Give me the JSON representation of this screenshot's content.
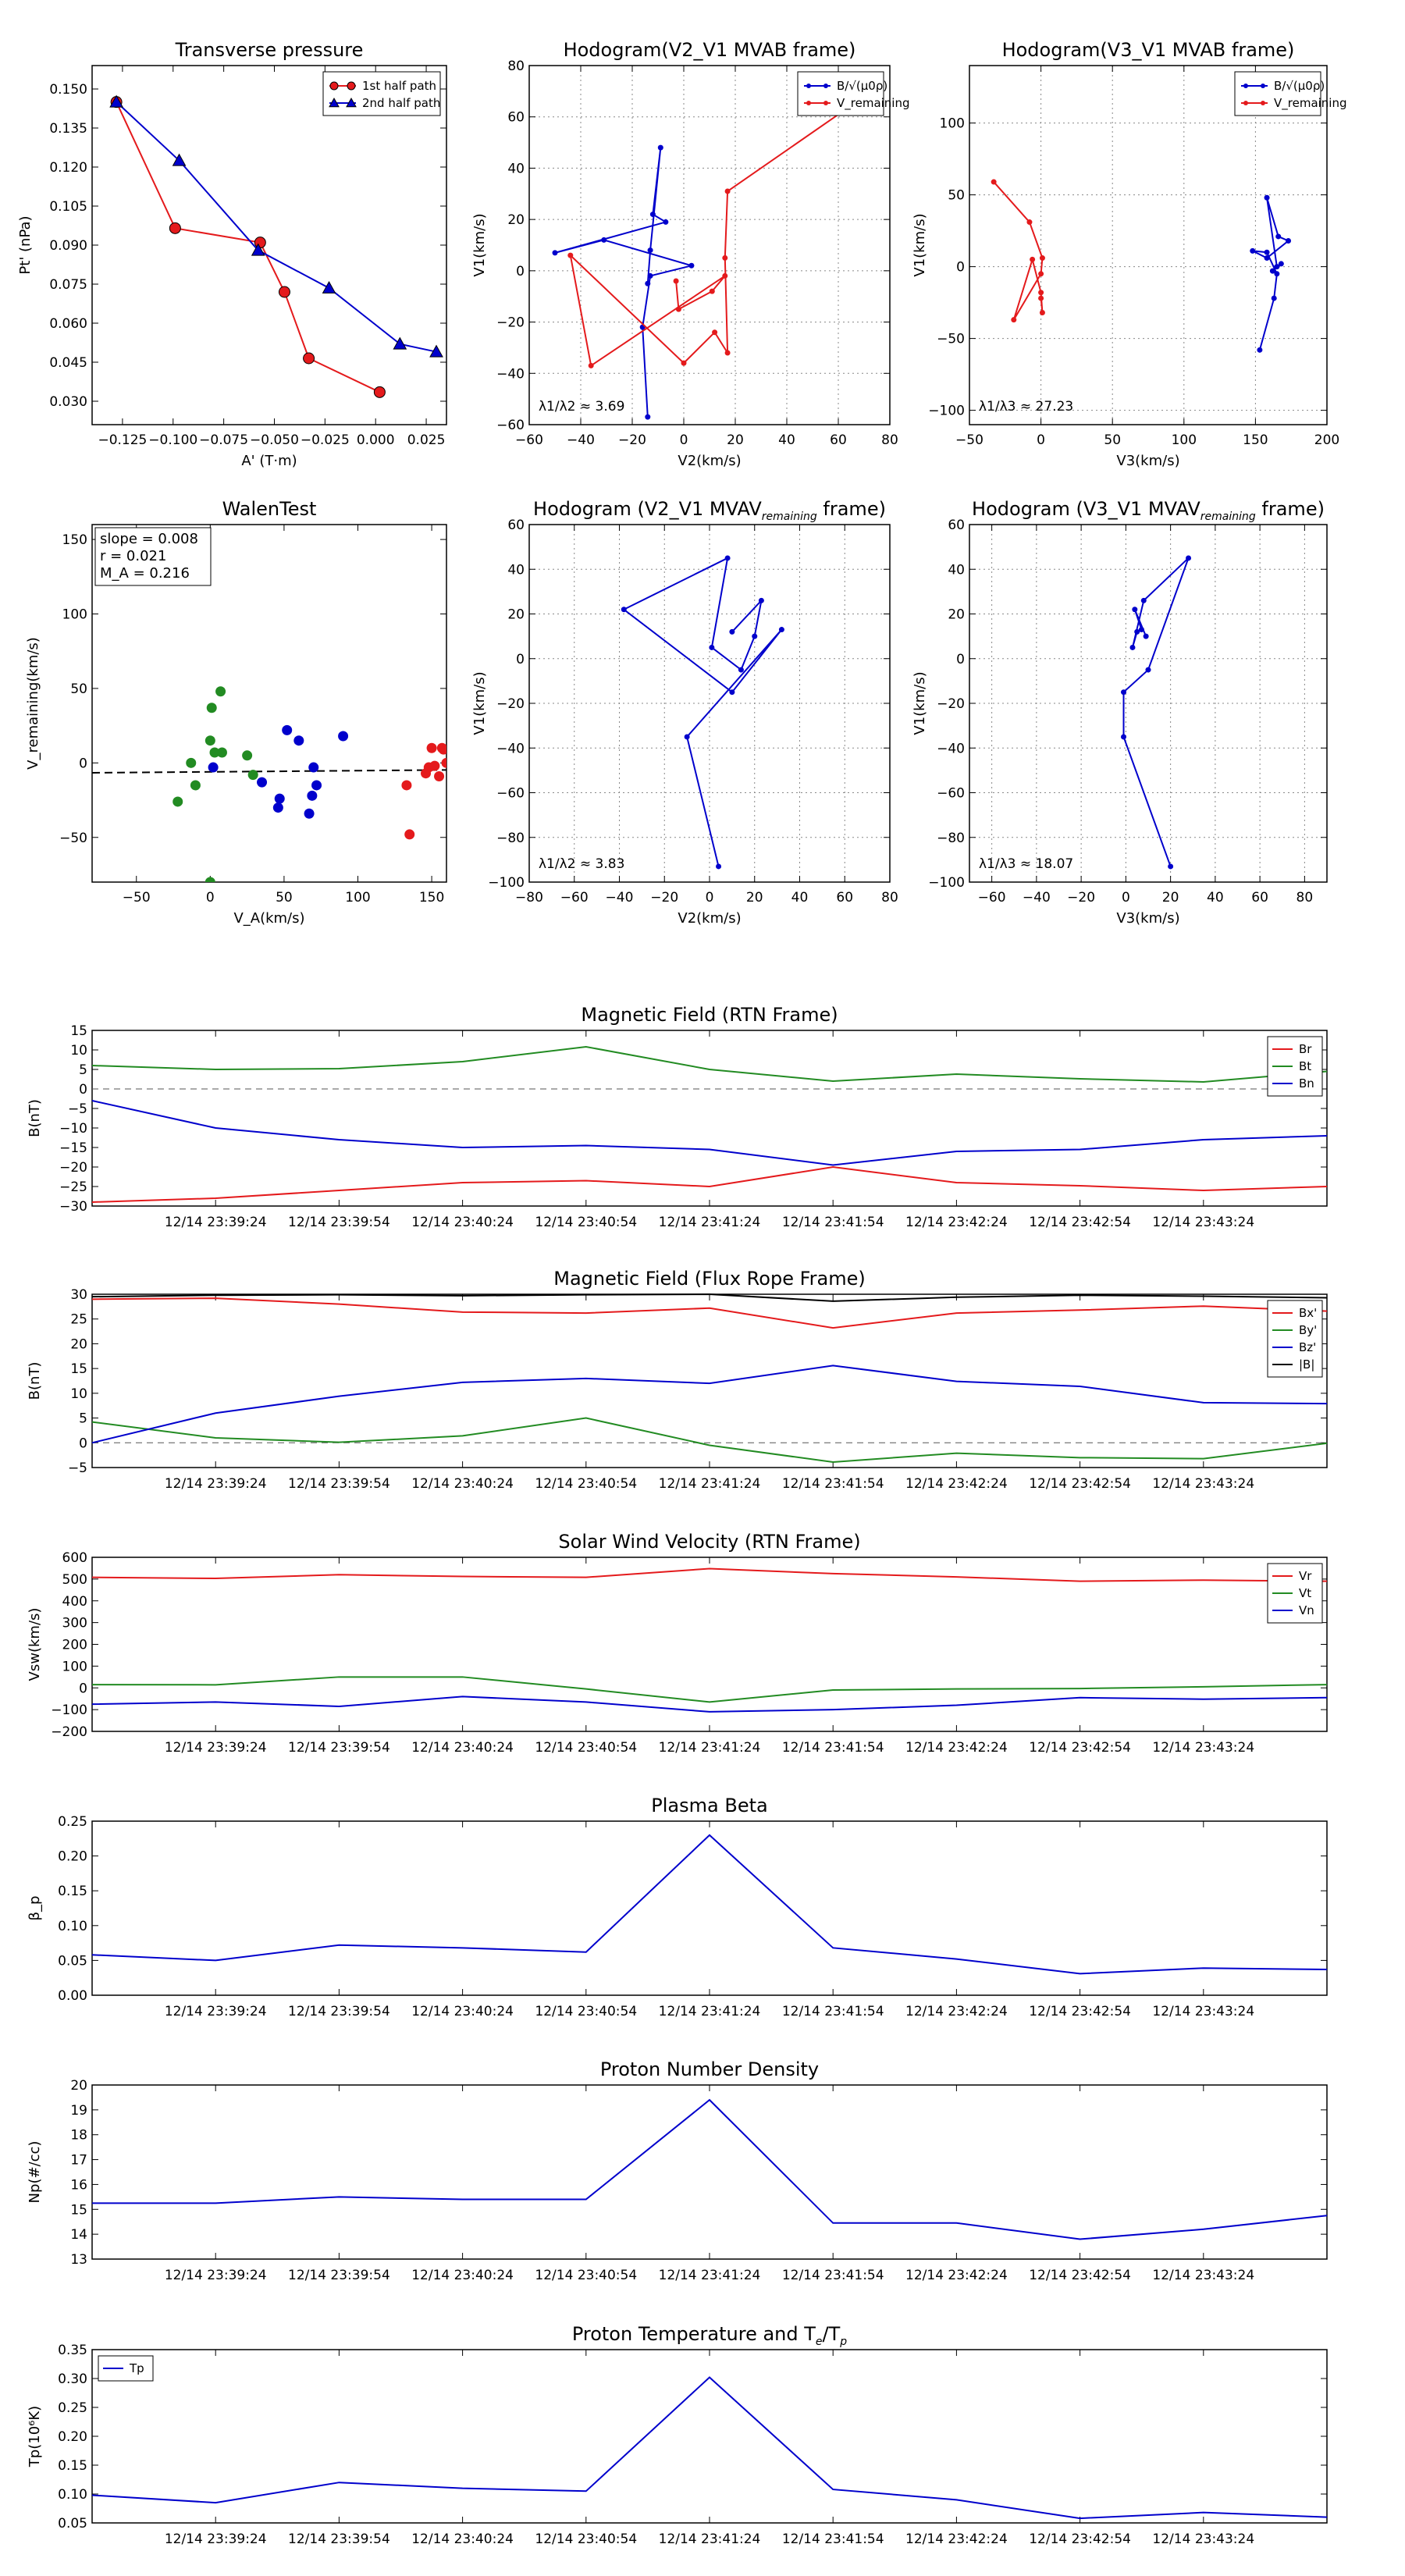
{
  "chart_data": [
    {
      "type": "line",
      "title": "Transverse pressure",
      "xlabel": "A' (T·m)",
      "ylabel": "Pt' (nPa)",
      "xlim": [
        -0.14,
        0.035
      ],
      "ylim": [
        0.021,
        0.159
      ],
      "xticks": [
        -0.125,
        -0.1,
        -0.075,
        -0.05,
        -0.025,
        0.0,
        0.025
      ],
      "xticklabels": [
        "−0.125",
        "−0.100",
        "−0.075",
        "−0.050",
        "−0.025",
        "0.000",
        "0.025"
      ],
      "yticks": [
        0.03,
        0.045,
        0.06,
        0.075,
        0.09,
        0.105,
        0.12,
        0.135,
        0.15
      ],
      "yticklabels": [
        "0.030",
        "0.045",
        "0.060",
        "0.075",
        "0.090",
        "0.105",
        "0.120",
        "0.135",
        "0.150"
      ],
      "legend": "top-right",
      "series": [
        {
          "name": "1st half path",
          "color": "#e41a1c",
          "marker": "circle",
          "x": [
            0.002,
            -0.033,
            -0.045,
            -0.057,
            -0.099,
            -0.128
          ],
          "y": [
            0.0335,
            0.0465,
            0.072,
            0.091,
            0.0965,
            0.145
          ]
        },
        {
          "name": "2nd half path",
          "color": "#0000cc",
          "marker": "triangle",
          "x": [
            -0.128,
            -0.097,
            -0.058,
            -0.023,
            0.012,
            0.03
          ],
          "y": [
            0.145,
            0.1225,
            0.088,
            0.0735,
            0.052,
            0.049
          ]
        }
      ]
    },
    {
      "type": "line",
      "title": "Hodogram(V2_V1 MVAB frame)",
      "xlabel": "V2(km/s)",
      "ylabel": "V1(km/s)",
      "xlim": [
        -60,
        80
      ],
      "ylim": [
        -60,
        80
      ],
      "xticks": [
        -60,
        -40,
        -20,
        0,
        20,
        40,
        60,
        80
      ],
      "xticklabels": [
        "−60",
        "−40",
        "−20",
        "0",
        "20",
        "40",
        "60",
        "80"
      ],
      "yticks": [
        -60,
        -40,
        -20,
        0,
        20,
        40,
        60,
        80
      ],
      "yticklabels": [
        "−60",
        "−40",
        "−20",
        "0",
        "20",
        "40",
        "60",
        "80"
      ],
      "grid": true,
      "legend": "top-right",
      "annotation": "λ1/λ2 ≈ 3.69",
      "series": [
        {
          "name": "B/√(μ0ρ)",
          "color": "#0000cc",
          "x": [
            -14,
            -16,
            -13,
            3,
            -31,
            -50,
            -7,
            -12,
            -9,
            -13,
            -14
          ],
          "y": [
            -57,
            -22,
            -2,
            2,
            12,
            7,
            19,
            22,
            48,
            8,
            -5
          ]
        },
        {
          "name": "V_remaining",
          "color": "#e41a1c",
          "x": [
            63,
            17,
            16,
            17,
            12,
            0,
            -44,
            -36,
            16,
            11,
            -2,
            -3
          ],
          "y": [
            63,
            31,
            5,
            -32,
            -24,
            -36,
            6,
            -37,
            -2,
            -8,
            -15,
            -4
          ]
        }
      ]
    },
    {
      "type": "line",
      "title": "Hodogram(V3_V1 MVAB frame)",
      "xlabel": "V3(km/s)",
      "ylabel": "V1(km/s)",
      "xlim": [
        -50,
        200
      ],
      "ylim": [
        -110,
        140
      ],
      "xticks": [
        -50,
        0,
        50,
        100,
        150,
        200
      ],
      "xticklabels": [
        "−50",
        "0",
        "50",
        "100",
        "150",
        "200"
      ],
      "yticks": [
        -100,
        -50,
        0,
        50,
        100
      ],
      "yticklabels": [
        "−100",
        "−50",
        "0",
        "50",
        "100"
      ],
      "grid": true,
      "legend": "top-right",
      "annotation": "λ1/λ3 ≈ 27.23",
      "series": [
        {
          "name": "B/√(μ0ρ)",
          "color": "#0000cc",
          "x": [
            153,
            163,
            165,
            158,
            148,
            158,
            173,
            166,
            158,
            165,
            168,
            162
          ],
          "y": [
            -58,
            -22,
            -5,
            10,
            11,
            6,
            18,
            21,
            48,
            0,
            2,
            -3
          ]
        },
        {
          "name": "V_remaining",
          "color": "#e41a1c",
          "x": [
            -33,
            -8,
            1,
            0,
            -19,
            -6,
            0,
            1,
            0
          ],
          "y": [
            59,
            31,
            6,
            -5,
            -37,
            5,
            -18,
            -32,
            -22
          ]
        }
      ]
    },
    {
      "type": "scatter",
      "title": "WalenTest",
      "xlabel": "V_A(km/s)",
      "ylabel": "V_remaining(km/s)",
      "xlim": [
        -80,
        160
      ],
      "ylim": [
        -80,
        160
      ],
      "xticks": [
        -50,
        0,
        50,
        100,
        150
      ],
      "xticklabels": [
        "−50",
        "0",
        "50",
        "100",
        "150"
      ],
      "yticks": [
        -50,
        0,
        50,
        100,
        150
      ],
      "yticklabels": [
        "−50",
        "0",
        "50",
        "100",
        "150"
      ],
      "fit_line": {
        "slope": 0.008,
        "intercept": -6,
        "style": "dashed"
      },
      "annotations": [
        "slope = 0.008",
        "r = 0.021",
        "M_A = 0.216"
      ],
      "series": [
        {
          "name": "green",
          "color": "#228b22",
          "x": [
            -22,
            -13,
            -10,
            0,
            1,
            3,
            7,
            8,
            25,
            29,
            0
          ],
          "y": [
            -26,
            0,
            -15,
            15,
            37,
            7,
            48,
            7,
            5,
            -8,
            -80
          ]
        },
        {
          "name": "blue",
          "color": "#0000cc",
          "x": [
            2,
            35,
            46,
            47,
            52,
            60,
            67,
            69,
            70,
            72,
            90
          ],
          "y": [
            -3,
            -13,
            -30,
            -24,
            22,
            15,
            -34,
            -22,
            -3,
            -15,
            18
          ]
        },
        {
          "name": "red",
          "color": "#e41a1c",
          "x": [
            133,
            135,
            146,
            148,
            150,
            152,
            155,
            157,
            158,
            160
          ],
          "y": [
            -15,
            -48,
            -7,
            -3,
            10,
            -2,
            -9,
            10,
            9,
            0
          ]
        }
      ]
    },
    {
      "type": "line",
      "title": "Hodogram (V2_V1 MVAV",
      "title_sub": "remaining",
      "title_tail": " frame)",
      "xlabel": "V2(km/s)",
      "ylabel": "V1(km/s)",
      "xlim": [
        -80,
        80
      ],
      "ylim": [
        -100,
        60
      ],
      "xticks": [
        -80,
        -60,
        -40,
        -20,
        0,
        20,
        40,
        60,
        80
      ],
      "xticklabels": [
        "−80",
        "−60",
        "−40",
        "−20",
        "0",
        "20",
        "40",
        "60",
        "80"
      ],
      "yticks": [
        -100,
        -80,
        -60,
        -40,
        -20,
        0,
        20,
        40,
        60
      ],
      "yticklabels": [
        "−100",
        "−80",
        "−60",
        "−40",
        "−20",
        "0",
        "20",
        "40",
        "60"
      ],
      "grid": true,
      "annotation": "λ1/λ2 ≈ 3.83",
      "series": [
        {
          "name": "V",
          "color": "#0000cc",
          "x": [
            4,
            -10,
            32,
            10,
            -38,
            8,
            1,
            14,
            20,
            23,
            10
          ],
          "y": [
            -93,
            -35,
            13,
            -15,
            22,
            45,
            5,
            -5,
            10,
            26,
            12
          ]
        }
      ]
    },
    {
      "type": "line",
      "title": "Hodogram (V3_V1 MVAV",
      "title_sub": "remaining",
      "title_tail": " frame)",
      "xlabel": "V3(km/s)",
      "ylabel": "V1(km/s)",
      "xlim": [
        -70,
        90
      ],
      "ylim": [
        -100,
        60
      ],
      "xticks": [
        -60,
        -40,
        -20,
        0,
        20,
        40,
        60,
        80
      ],
      "xticklabels": [
        "−60",
        "−40",
        "−20",
        "0",
        "20",
        "40",
        "60",
        "80"
      ],
      "yticks": [
        -100,
        -80,
        -60,
        -40,
        -20,
        0,
        20,
        40,
        60
      ],
      "yticklabels": [
        "−100",
        "−80",
        "−60",
        "−40",
        "−20",
        "0",
        "20",
        "40",
        "60"
      ],
      "grid": true,
      "annotation": "λ1/λ3 ≈ 18.07",
      "series": [
        {
          "name": "V",
          "color": "#0000cc",
          "x": [
            20,
            -1,
            -1,
            10,
            28,
            8,
            3,
            5,
            7,
            4,
            9
          ],
          "y": [
            -93,
            -35,
            -15,
            -5,
            45,
            26,
            5,
            12,
            13,
            22,
            10
          ]
        }
      ]
    },
    {
      "type": "line",
      "title": "Magnetic Field (RTN Frame)",
      "xlabel": "",
      "ylabel": "B(nT)",
      "ylim": [
        -30,
        15
      ],
      "yticks": [
        -30,
        -25,
        -20,
        -15,
        -10,
        -5,
        0,
        5,
        10,
        15
      ],
      "yticklabels": [
        "−30",
        "−25",
        "−20",
        "−15",
        "−10",
        "−5",
        "0",
        "5",
        "10",
        "15"
      ],
      "time_labels": [
        "12/14 23:39:24",
        "12/14 23:39:54",
        "12/14 23:40:24",
        "12/14 23:40:54",
        "12/14 23:41:24",
        "12/14 23:41:54",
        "12/14 23:42:24",
        "12/14 23:42:54",
        "12/14 23:43:24"
      ],
      "zero_line": true,
      "legend": "top-right",
      "series": [
        {
          "name": "Br",
          "color": "#e41a1c",
          "values": [
            -29,
            -28,
            -26,
            -24,
            -23.5,
            -25,
            -20,
            -24,
            -24.8,
            -26,
            -25
          ]
        },
        {
          "name": "Bt",
          "color": "#228b22",
          "values": [
            6,
            5,
            5.2,
            7,
            10.8,
            5,
            2,
            3.8,
            2.6,
            1.8,
            4.5
          ]
        },
        {
          "name": "Bn",
          "color": "#0000cc",
          "values": [
            -3,
            -10,
            -13,
            -15,
            -14.5,
            -15.5,
            -19.5,
            -16,
            -15.5,
            -13,
            -12
          ]
        }
      ]
    },
    {
      "type": "line",
      "title": "Magnetic Field (Flux Rope Frame)",
      "xlabel": "",
      "ylabel": "B(nT)",
      "ylim": [
        -5,
        30
      ],
      "yticks": [
        -5,
        0,
        5,
        10,
        15,
        20,
        25,
        30
      ],
      "yticklabels": [
        "−5",
        "0",
        "5",
        "10",
        "15",
        "20",
        "25",
        "30"
      ],
      "time_labels": [
        "12/14 23:39:24",
        "12/14 23:39:54",
        "12/14 23:40:24",
        "12/14 23:40:54",
        "12/14 23:41:24",
        "12/14 23:41:54",
        "12/14 23:42:24",
        "12/14 23:42:54",
        "12/14 23:43:24"
      ],
      "zero_line": true,
      "legend": "top-right",
      "series": [
        {
          "name": "Bx'",
          "color": "#e41a1c",
          "values": [
            29,
            29.2,
            28,
            26.4,
            26.2,
            27.2,
            23.2,
            26.2,
            26.8,
            27.6,
            26.6
          ]
        },
        {
          "name": "By'",
          "color": "#228b22",
          "values": [
            4.2,
            1,
            0.1,
            1.4,
            5,
            -0.5,
            -3.9,
            -2.1,
            -3,
            -3.2,
            -0.1
          ]
        },
        {
          "name": "Bz'",
          "color": "#0000cc",
          "values": [
            0,
            6,
            9.4,
            12.2,
            13,
            12,
            15.6,
            12.4,
            11.4,
            8.1,
            7.9
          ]
        },
        {
          "name": "|B|",
          "color": "#000000",
          "values": [
            29.5,
            29.8,
            29.9,
            29.7,
            29.9,
            30,
            28.6,
            29.4,
            29.8,
            29.6,
            29.3
          ]
        }
      ]
    },
    {
      "type": "line",
      "title": "Solar Wind Velocity (RTN Frame)",
      "xlabel": "",
      "ylabel": "Vsw(km/s)",
      "ylim": [
        -200,
        600
      ],
      "yticks": [
        -200,
        -100,
        0,
        100,
        200,
        300,
        400,
        500,
        600
      ],
      "yticklabels": [
        "−200",
        "−100",
        "0",
        "100",
        "200",
        "300",
        "400",
        "500",
        "600"
      ],
      "time_labels": [
        "12/14 23:39:24",
        "12/14 23:39:54",
        "12/14 23:40:24",
        "12/14 23:40:54",
        "12/14 23:41:24",
        "12/14 23:41:54",
        "12/14 23:42:24",
        "12/14 23:42:54",
        "12/14 23:43:24"
      ],
      "legend": "top-right",
      "series": [
        {
          "name": "Vr",
          "color": "#e41a1c",
          "values": [
            508,
            503,
            520,
            512,
            508,
            548,
            525,
            510,
            490,
            495,
            490
          ]
        },
        {
          "name": "Vt",
          "color": "#228b22",
          "values": [
            15,
            14,
            50,
            50,
            -5,
            -65,
            -10,
            -5,
            -3,
            5,
            15
          ]
        },
        {
          "name": "Vn",
          "color": "#0000cc",
          "values": [
            -75,
            -65,
            -85,
            -40,
            -65,
            -110,
            -100,
            -80,
            -45,
            -52,
            -45
          ]
        }
      ]
    },
    {
      "type": "line",
      "title": "Plasma Beta",
      "xlabel": "",
      "ylabel": "β_p",
      "ylim": [
        0,
        0.25
      ],
      "yticks": [
        0,
        0.05,
        0.1,
        0.15,
        0.2,
        0.25
      ],
      "yticklabels": [
        "0.00",
        "0.05",
        "0.10",
        "0.15",
        "0.20",
        "0.25"
      ],
      "time_labels": [
        "12/14 23:39:24",
        "12/14 23:39:54",
        "12/14 23:40:24",
        "12/14 23:40:54",
        "12/14 23:41:24",
        "12/14 23:41:54",
        "12/14 23:42:24",
        "12/14 23:42:54",
        "12/14 23:43:24"
      ],
      "series": [
        {
          "name": "beta",
          "color": "#0000cc",
          "values": [
            0.058,
            0.05,
            0.072,
            0.068,
            0.062,
            0.23,
            0.068,
            0.052,
            0.031,
            0.039,
            0.037
          ]
        }
      ]
    },
    {
      "type": "line",
      "title": "Proton Number Density",
      "xlabel": "",
      "ylabel": "Np(#/cc)",
      "ylim": [
        13,
        20
      ],
      "yticks": [
        13,
        14,
        15,
        16,
        17,
        18,
        19,
        20
      ],
      "yticklabels": [
        "13",
        "14",
        "15",
        "16",
        "17",
        "18",
        "19",
        "20"
      ],
      "time_labels": [
        "12/14 23:39:24",
        "12/14 23:39:54",
        "12/14 23:40:24",
        "12/14 23:40:54",
        "12/14 23:41:24",
        "12/14 23:41:54",
        "12/14 23:42:24",
        "12/14 23:42:54",
        "12/14 23:43:24"
      ],
      "series": [
        {
          "name": "Np",
          "color": "#0000cc",
          "values": [
            15.25,
            15.25,
            15.5,
            15.4,
            15.4,
            19.4,
            14.45,
            14.45,
            13.8,
            14.2,
            14.75
          ]
        }
      ]
    },
    {
      "type": "line",
      "title": "Proton Temperature and T",
      "title_sub": "e",
      "title_tail": "/T",
      "title_sub2": "p",
      "xlabel": "",
      "ylabel": "Tp(10⁶K)",
      "ylim": [
        0.05,
        0.35
      ],
      "yticks": [
        0.05,
        0.1,
        0.15,
        0.2,
        0.25,
        0.3,
        0.35
      ],
      "yticklabels": [
        "0.05",
        "0.10",
        "0.15",
        "0.20",
        "0.25",
        "0.30",
        "0.35"
      ],
      "time_labels": [
        "12/14 23:39:24",
        "12/14 23:39:54",
        "12/14 23:40:24",
        "12/14 23:40:54",
        "12/14 23:41:24",
        "12/14 23:41:54",
        "12/14 23:42:24",
        "12/14 23:42:54",
        "12/14 23:43:24"
      ],
      "legend": "top-left",
      "series": [
        {
          "name": "Tp",
          "color": "#0000cc",
          "values": [
            0.098,
            0.085,
            0.12,
            0.11,
            0.105,
            0.302,
            0.108,
            0.09,
            0.058,
            0.068,
            0.06
          ]
        }
      ]
    }
  ]
}
